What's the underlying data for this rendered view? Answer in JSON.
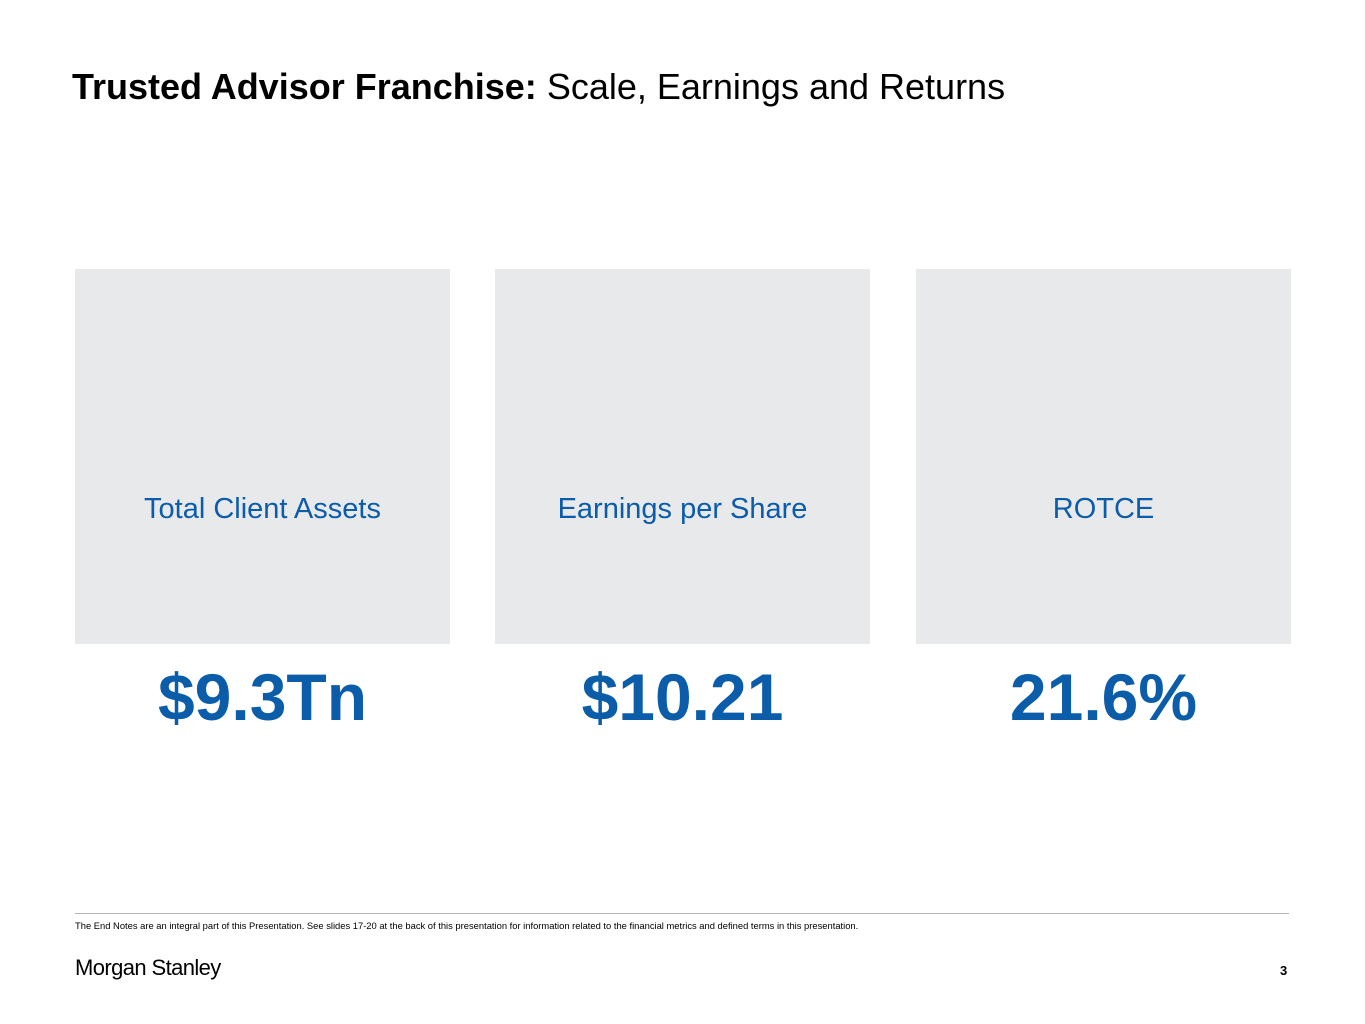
{
  "header": {
    "title_bold": "Trusted Advisor Franchise:",
    "title_rest": "Scale, Earnings and Returns"
  },
  "cards": [
    {
      "value": "$9.3Tn",
      "label": "Total Client Assets"
    },
    {
      "value": "$10.21",
      "label": "Earnings per Share"
    },
    {
      "value": "21.6%",
      "label": "ROTCE"
    }
  ],
  "footer": {
    "note": "The End Notes are an integral part of this Presentation. See slides 17-20 at the back of this presentation for information related to the financial metrics and defined terms in this presentation.",
    "logo": "Morgan Stanley",
    "page_number": "3"
  }
}
